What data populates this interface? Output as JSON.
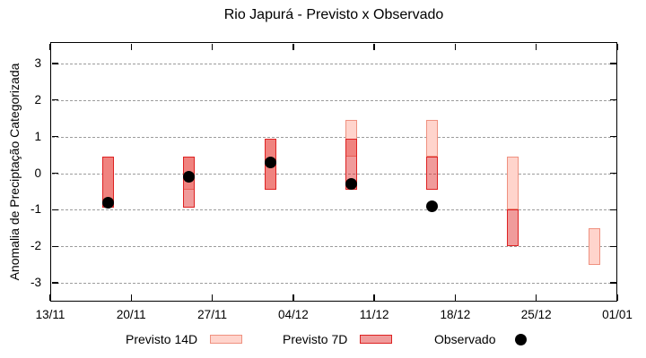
{
  "title": "Rio Japurá - Previsto x Observado",
  "y_axis": {
    "label": "Anomalia de Preciptação Categorizada",
    "tick_values": [
      3,
      2,
      1,
      0,
      -1,
      -2,
      -3
    ]
  },
  "x_axis": {
    "ticks": [
      {
        "label": "13/11",
        "day": 0
      },
      {
        "label": "20/11",
        "day": 7
      },
      {
        "label": "27/11",
        "day": 14
      },
      {
        "label": "04/12",
        "day": 21
      },
      {
        "label": "11/12",
        "day": 28
      },
      {
        "label": "18/12",
        "day": 35
      },
      {
        "label": "25/12",
        "day": 42
      },
      {
        "label": "01/01",
        "day": 49
      }
    ],
    "span_days": 49
  },
  "legend": {
    "previsto14_label": "Previsto 14D",
    "previsto7_label": "Previsto 7D",
    "observado_label": "Observado"
  },
  "colors": {
    "p14_fill": "#ffd4cc",
    "p14_border": "#ef9180",
    "p7_fill": "rgba(221,34,34,0.45)",
    "p7_border": "#dd2222",
    "observed": "#000000",
    "grid": "#9c9c9c",
    "axis": "#000000"
  },
  "chart_data": {
    "type": "bar",
    "title": "Rio Japurá - Previsto x Observado",
    "ylabel": "Anomalia de Preciptação Categorizada",
    "ylim": [
      -3.5,
      3.5
    ],
    "x_tick_labels": [
      "13/11",
      "20/11",
      "27/11",
      "04/12",
      "11/12",
      "18/12",
      "25/12",
      "01/01"
    ],
    "legend_entries": [
      "Previsto 14D",
      "Previsto 7D",
      "Observado"
    ],
    "grid": "horizontal-dashed",
    "legend_position": "bottom",
    "groups": [
      {
        "date": "18/11",
        "day": 5,
        "previsto14": [
          -0.95,
          0.45
        ],
        "previsto7": [
          -0.95,
          0.45
        ],
        "observado": -0.8
      },
      {
        "date": "25/11",
        "day": 12,
        "previsto14": [
          -0.45,
          0.45
        ],
        "previsto7": [
          -0.95,
          0.45
        ],
        "observado": -0.1
      },
      {
        "date": "02/12",
        "day": 19,
        "previsto14": [
          -0.45,
          0.95
        ],
        "previsto7": [
          -0.45,
          0.95
        ],
        "observado": 0.3
      },
      {
        "date": "09/12",
        "day": 26,
        "previsto14": [
          0.45,
          1.45
        ],
        "previsto7": [
          -0.45,
          0.95
        ],
        "observado": -0.3
      },
      {
        "date": "16/12",
        "day": 33,
        "previsto14": [
          0.45,
          1.45
        ],
        "previsto7": [
          -0.45,
          0.45
        ],
        "observado": -0.9
      },
      {
        "date": "23/12",
        "day": 40,
        "previsto14": [
          -1.0,
          0.45
        ],
        "previsto7": [
          -2.0,
          -1.0
        ],
        "observado": null
      },
      {
        "date": "30/12",
        "day": 47,
        "previsto14": [
          -2.5,
          -1.5
        ],
        "previsto7": null,
        "observado": null
      }
    ]
  }
}
